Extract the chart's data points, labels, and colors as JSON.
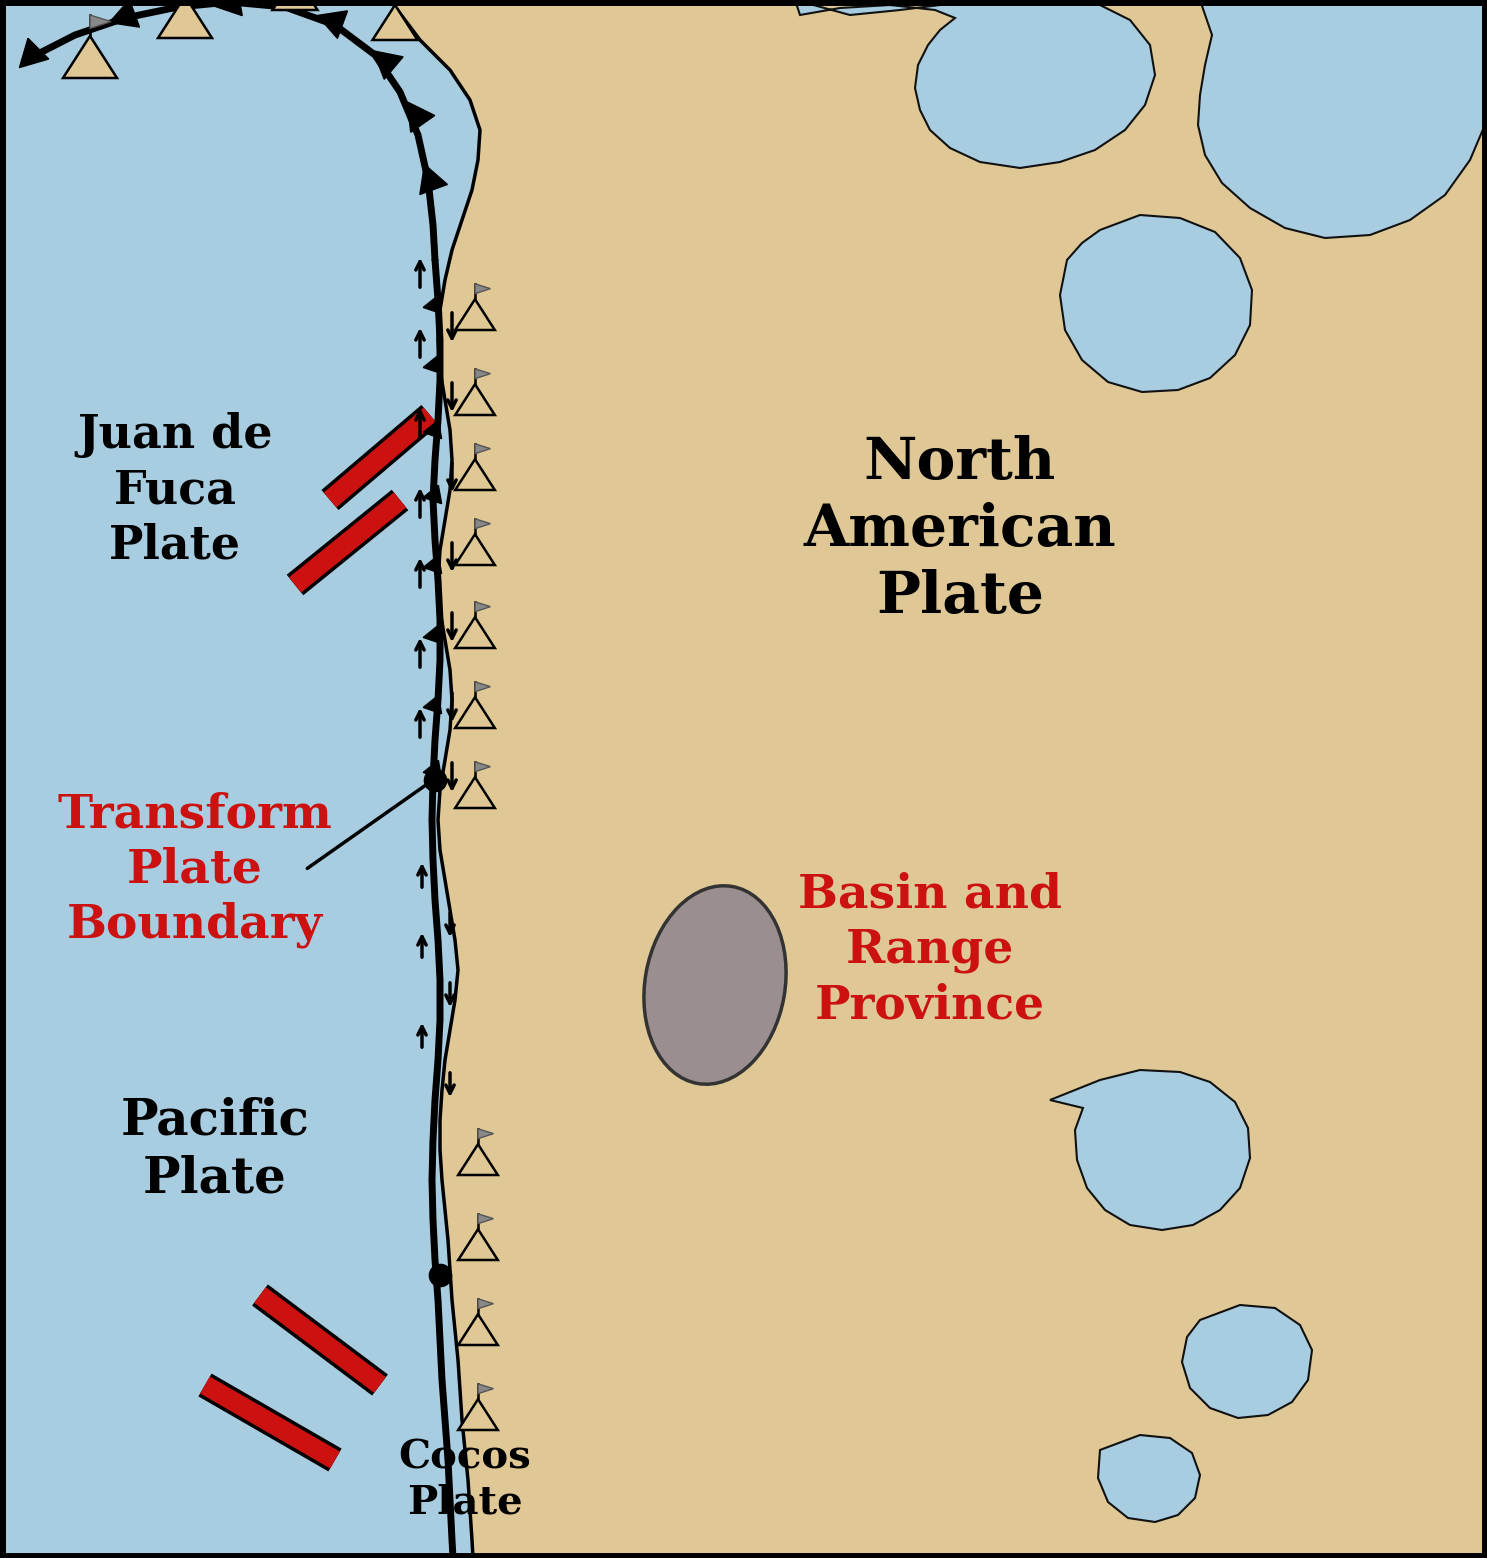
{
  "bg_ocean": "#A8CDE0",
  "bg_land": "#DFC896",
  "red_boundary": "#CC1111",
  "gray_region": "#9A8E8E",
  "labels": {
    "juan_de_fuca": "Juan de\nFuca\nPlate",
    "north_american": "North\nAmerican\nPlate",
    "pacific": "Pacific\nPlate",
    "transform": "Transform\nPlate\nBoundary",
    "basin_range": "Basin and\nRange\nProvince",
    "cocos": "Cocos\nPlate"
  },
  "label_colors": {
    "juan_de_fuca": "#000000",
    "north_american": "#000000",
    "pacific": "#000000",
    "transform": "#CC1111",
    "basin_range": "#CC1111",
    "cocos": "#000000"
  },
  "figsize": [
    14.87,
    15.58
  ],
  "dpi": 100
}
